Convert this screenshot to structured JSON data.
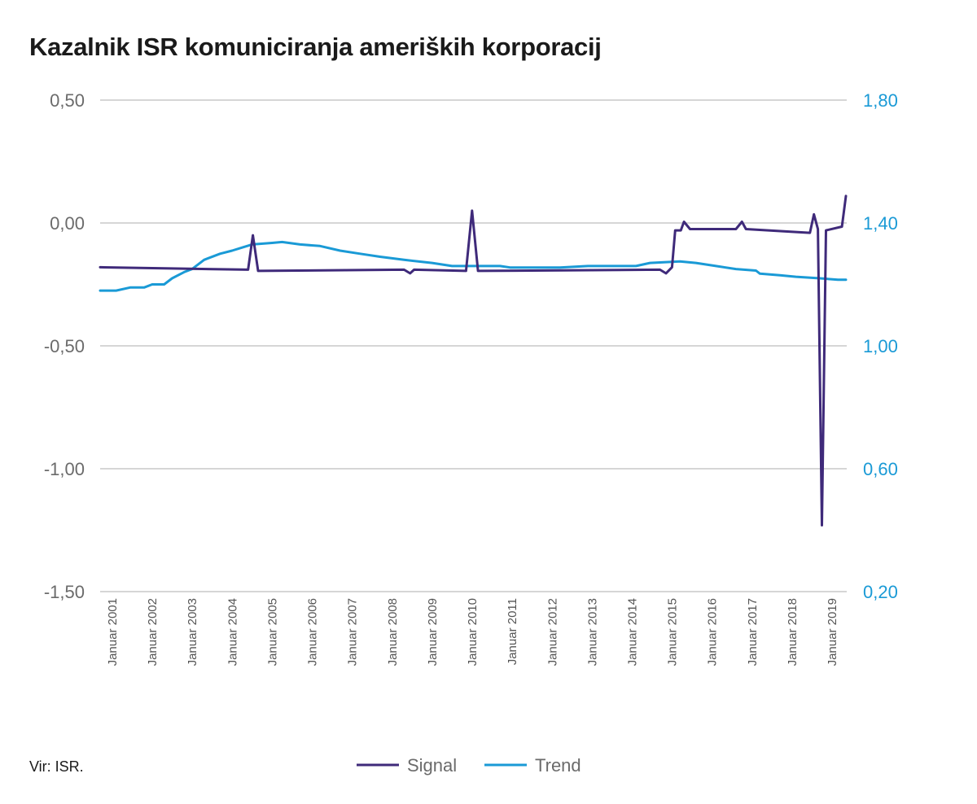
{
  "title": "Kazalnik ISR komuniciranja ameriških korporacij",
  "source": "Vir: ISR.",
  "colors": {
    "signal": "#3f2a7a",
    "trend": "#1a9ad6",
    "grid": "#c8c8c8",
    "left_axis_text": "#6b6b6b",
    "right_axis_text": "#1a9ad6"
  },
  "chart_data": {
    "type": "line",
    "grid": true,
    "legend_position": "bottom-center",
    "x_ticks": [
      "Januar 2001",
      "Januar 2002",
      "Januar 2003",
      "Januar 2004",
      "Januar 2005",
      "Januar 2006",
      "Januar 2007",
      "Januar 2008",
      "Januar 2009",
      "Januar 2010",
      "Januar 2011",
      "Januar 2012",
      "Januar 2013",
      "Januar 2014",
      "Januar 2015",
      "Januar 2016",
      "Januar 2017",
      "Januar 2018",
      "Januar 2019"
    ],
    "x_range": [
      2001.0,
      2019.67
    ],
    "y_left": {
      "ticks": [
        "0,50",
        "0,00",
        "-0,50",
        "-1,00",
        "-1,50"
      ],
      "tick_values": [
        0.5,
        0.0,
        -0.5,
        -1.0,
        -1.5
      ],
      "range": [
        -1.5,
        0.5
      ]
    },
    "y_right": {
      "ticks": [
        "1,80",
        "1,40",
        "1,00",
        "0,60",
        "0,20"
      ],
      "tick_values": [
        1.8,
        1.4,
        1.0,
        0.6,
        0.2
      ],
      "range": [
        0.2,
        1.8
      ]
    },
    "series": [
      {
        "name": "Signal",
        "axis": "left",
        "points": [
          [
            2001.0,
            -0.18
          ],
          [
            2004.7,
            -0.19
          ],
          [
            2004.82,
            -0.05
          ],
          [
            2004.95,
            -0.195
          ],
          [
            2008.6,
            -0.19
          ],
          [
            2008.75,
            -0.205
          ],
          [
            2008.85,
            -0.19
          ],
          [
            2010.15,
            -0.195
          ],
          [
            2010.3,
            0.05
          ],
          [
            2010.45,
            -0.195
          ],
          [
            2015.0,
            -0.19
          ],
          [
            2015.15,
            -0.205
          ],
          [
            2015.3,
            -0.18
          ],
          [
            2015.38,
            -0.03
          ],
          [
            2015.52,
            -0.03
          ],
          [
            2015.6,
            0.005
          ],
          [
            2015.75,
            -0.025
          ],
          [
            2016.9,
            -0.025
          ],
          [
            2017.05,
            0.005
          ],
          [
            2017.15,
            -0.025
          ],
          [
            2018.75,
            -0.04
          ],
          [
            2018.85,
            0.035
          ],
          [
            2018.95,
            -0.025
          ],
          [
            2019.05,
            -1.23
          ],
          [
            2019.15,
            -0.03
          ],
          [
            2019.55,
            -0.015
          ],
          [
            2019.65,
            0.11
          ]
        ]
      },
      {
        "name": "Trend",
        "axis": "right",
        "points": [
          [
            2001.0,
            1.18
          ],
          [
            2001.4,
            1.18
          ],
          [
            2001.75,
            1.19
          ],
          [
            2002.1,
            1.19
          ],
          [
            2002.3,
            1.2
          ],
          [
            2002.6,
            1.2
          ],
          [
            2002.8,
            1.22
          ],
          [
            2003.1,
            1.24
          ],
          [
            2003.3,
            1.25
          ],
          [
            2003.6,
            1.28
          ],
          [
            2004.0,
            1.3
          ],
          [
            2004.3,
            1.31
          ],
          [
            2004.55,
            1.32
          ],
          [
            2004.8,
            1.33
          ],
          [
            2005.3,
            1.335
          ],
          [
            2005.55,
            1.338
          ],
          [
            2006.0,
            1.33
          ],
          [
            2006.5,
            1.325
          ],
          [
            2007.0,
            1.31
          ],
          [
            2007.5,
            1.3
          ],
          [
            2008.0,
            1.29
          ],
          [
            2008.6,
            1.28
          ],
          [
            2009.3,
            1.27
          ],
          [
            2009.8,
            1.26
          ],
          [
            2010.0,
            1.26
          ],
          [
            2011.0,
            1.26
          ],
          [
            2011.25,
            1.255
          ],
          [
            2012.5,
            1.255
          ],
          [
            2013.2,
            1.26
          ],
          [
            2014.4,
            1.26
          ],
          [
            2014.75,
            1.27
          ],
          [
            2015.5,
            1.275
          ],
          [
            2015.9,
            1.27
          ],
          [
            2016.4,
            1.26
          ],
          [
            2016.9,
            1.25
          ],
          [
            2017.4,
            1.245
          ],
          [
            2017.5,
            1.235
          ],
          [
            2018.0,
            1.23
          ],
          [
            2018.4,
            1.225
          ],
          [
            2019.0,
            1.22
          ],
          [
            2019.45,
            1.215
          ],
          [
            2019.65,
            1.215
          ]
        ]
      }
    ]
  }
}
